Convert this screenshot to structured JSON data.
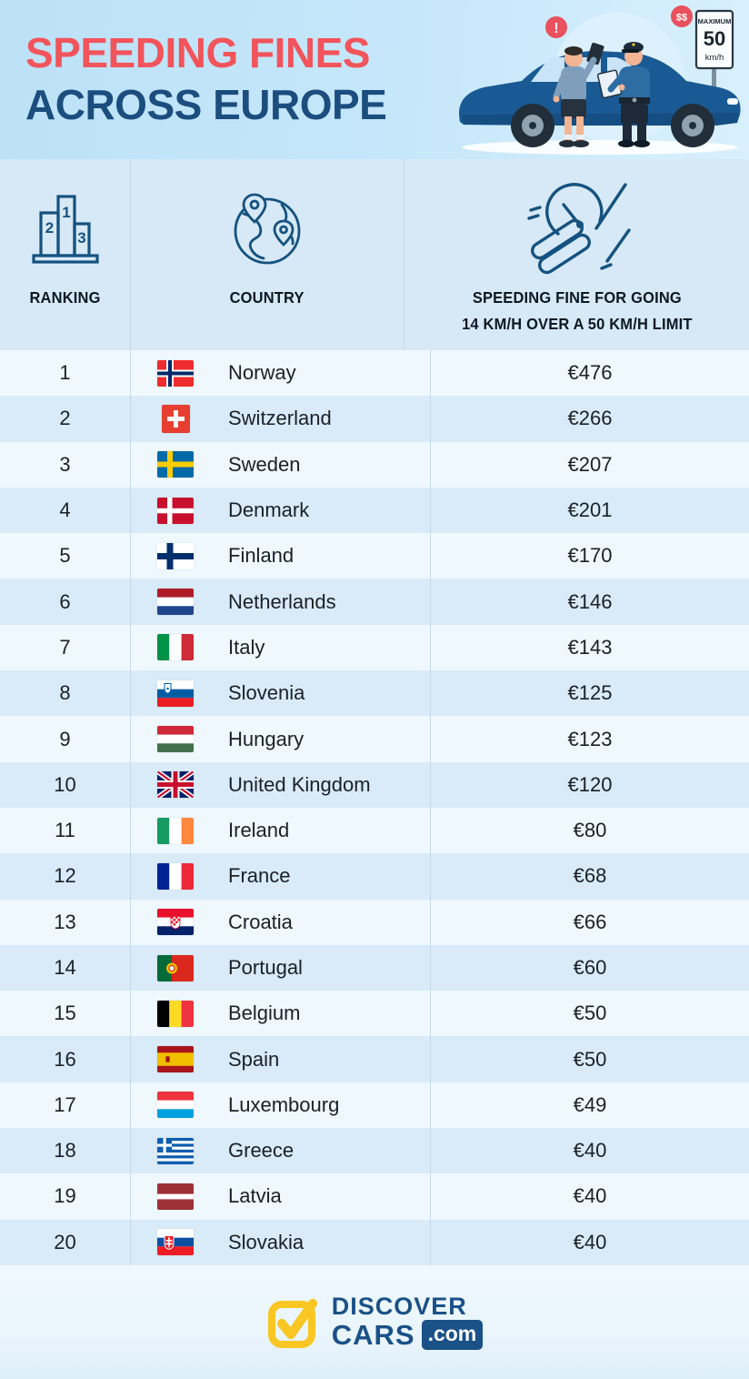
{
  "banner": {
    "title_line1": "SPEEDING FINES",
    "title_line2": "ACROSS EUROPE",
    "illustration": {
      "sign_line1": "MAXIMUM",
      "sign_line2": "50",
      "sign_line3": "km/h",
      "bubble_driver": "!",
      "bubble_officer": "$$"
    }
  },
  "table": {
    "columns": [
      {
        "label": "RANKING",
        "icon": "podium-icon"
      },
      {
        "label": "COUNTRY",
        "icon": "globe-icon"
      },
      {
        "label_line1": "SPEEDING FINE FOR GOING",
        "label_line2": "14 KM/H OVER A 50 KM/H LIMIT",
        "icon": "speeding-fine-icon"
      }
    ],
    "rows": [
      {
        "rank": "1",
        "country": "Norway",
        "flag": "norway",
        "fine": "€476"
      },
      {
        "rank": "2",
        "country": "Switzerland",
        "flag": "switzerland",
        "fine": "€266"
      },
      {
        "rank": "3",
        "country": "Sweden",
        "flag": "sweden",
        "fine": "€207"
      },
      {
        "rank": "4",
        "country": "Denmark",
        "flag": "denmark",
        "fine": "€201"
      },
      {
        "rank": "5",
        "country": "Finland",
        "flag": "finland",
        "fine": "€170"
      },
      {
        "rank": "6",
        "country": "Netherlands",
        "flag": "netherlands",
        "fine": "€146"
      },
      {
        "rank": "7",
        "country": "Italy",
        "flag": "italy",
        "fine": "€143"
      },
      {
        "rank": "8",
        "country": "Slovenia",
        "flag": "slovenia",
        "fine": "€125"
      },
      {
        "rank": "9",
        "country": "Hungary",
        "flag": "hungary",
        "fine": "€123"
      },
      {
        "rank": "10",
        "country": "United Kingdom",
        "flag": "united-kingdom",
        "fine": "€120"
      },
      {
        "rank": "11",
        "country": "Ireland",
        "flag": "ireland",
        "fine": "€80"
      },
      {
        "rank": "12",
        "country": "France",
        "flag": "france",
        "fine": "€68"
      },
      {
        "rank": "13",
        "country": "Croatia",
        "flag": "croatia",
        "fine": "€66"
      },
      {
        "rank": "14",
        "country": "Portugal",
        "flag": "portugal",
        "fine": "€60"
      },
      {
        "rank": "15",
        "country": "Belgium",
        "flag": "belgium",
        "fine": "€50"
      },
      {
        "rank": "16",
        "country": "Spain",
        "flag": "spain",
        "fine": "€50"
      },
      {
        "rank": "17",
        "country": "Luxembourg",
        "flag": "luxembourg",
        "fine": "€49"
      },
      {
        "rank": "18",
        "country": "Greece",
        "flag": "greece",
        "fine": "€40"
      },
      {
        "rank": "19",
        "country": "Latvia",
        "flag": "latvia",
        "fine": "€40"
      },
      {
        "rank": "20",
        "country": "Slovakia",
        "flag": "slovakia",
        "fine": "€40"
      }
    ]
  },
  "chart_data": {
    "type": "table",
    "title": "SPEEDING FINES ACROSS EUROPE",
    "columns": [
      "RANKING",
      "COUNTRY",
      "SPEEDING FINE FOR GOING 14 KM/H OVER A 50 KM/H LIMIT"
    ],
    "categories": [
      "Norway",
      "Switzerland",
      "Sweden",
      "Denmark",
      "Finland",
      "Netherlands",
      "Italy",
      "Slovenia",
      "Hungary",
      "United Kingdom",
      "Ireland",
      "France",
      "Croatia",
      "Portugal",
      "Belgium",
      "Spain",
      "Luxembourg",
      "Greece",
      "Latvia",
      "Slovakia"
    ],
    "values_eur": [
      476,
      266,
      207,
      201,
      170,
      146,
      143,
      125,
      123,
      120,
      80,
      68,
      66,
      60,
      50,
      50,
      49,
      40,
      40,
      40
    ]
  },
  "footer": {
    "logo_line1": "DISCOVER",
    "logo_line2": "CARS",
    "logo_suffix": ".com"
  },
  "colors": {
    "title_red": "#F2545B",
    "title_navy": "#1B4E7E",
    "row_light": "#EFF8FE",
    "row_blue": "#D9EAF8",
    "header_bg": "#D7E9F6",
    "icon_stroke": "#15527F",
    "bubble_red": "#E8515D",
    "logo_yellow": "#F9C623",
    "logo_navy": "#1A5187"
  }
}
